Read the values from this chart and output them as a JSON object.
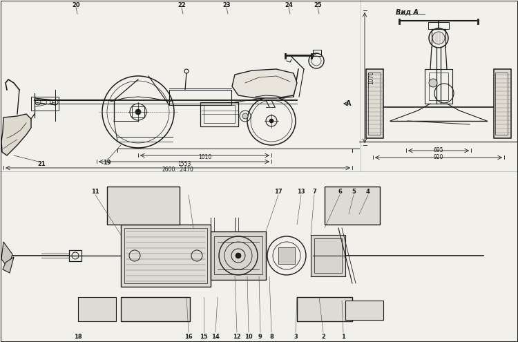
{
  "bg_color": "#f2f0eb",
  "line_color": "#1a1a1a",
  "dark_color": "#111111",
  "gray_color": "#888888",
  "views": {
    "side_view": {
      "numbers_top": [
        [
          "20",
          110,
          8
        ],
        [
          "22",
          263,
          8
        ],
        [
          "23",
          328,
          8
        ],
        [
          "24",
          418,
          8
        ],
        [
          "25",
          460,
          8
        ]
      ],
      "numbers_bot": [
        [
          "19",
          153,
          238
        ],
        [
          "21",
          60,
          238
        ]
      ],
      "label_A": "A",
      "dim_1010": "1010",
      "dim_1553": "1553",
      "dim_2600_2470": "2600...2470"
    },
    "front_view": {
      "label": "Вид А",
      "dim_1070": "1070",
      "dim_695": "695",
      "dim_920": "920"
    },
    "bottom_view": {
      "numbers": [
        [
          "1",
          497,
          487
        ],
        [
          "2",
          468,
          487
        ],
        [
          "3",
          428,
          487
        ],
        [
          "4",
          533,
          278
        ],
        [
          "5",
          512,
          278
        ],
        [
          "6",
          492,
          278
        ],
        [
          "7",
          455,
          278
        ],
        [
          "8",
          393,
          487
        ],
        [
          "9",
          377,
          487
        ],
        [
          "10",
          360,
          487
        ],
        [
          "11",
          138,
          278
        ],
        [
          "12",
          343,
          487
        ],
        [
          "13",
          436,
          278
        ],
        [
          "14",
          312,
          487
        ],
        [
          "15",
          295,
          487
        ],
        [
          "16",
          273,
          487
        ],
        [
          "17",
          403,
          278
        ],
        [
          "18",
          113,
          487
        ]
      ]
    }
  }
}
